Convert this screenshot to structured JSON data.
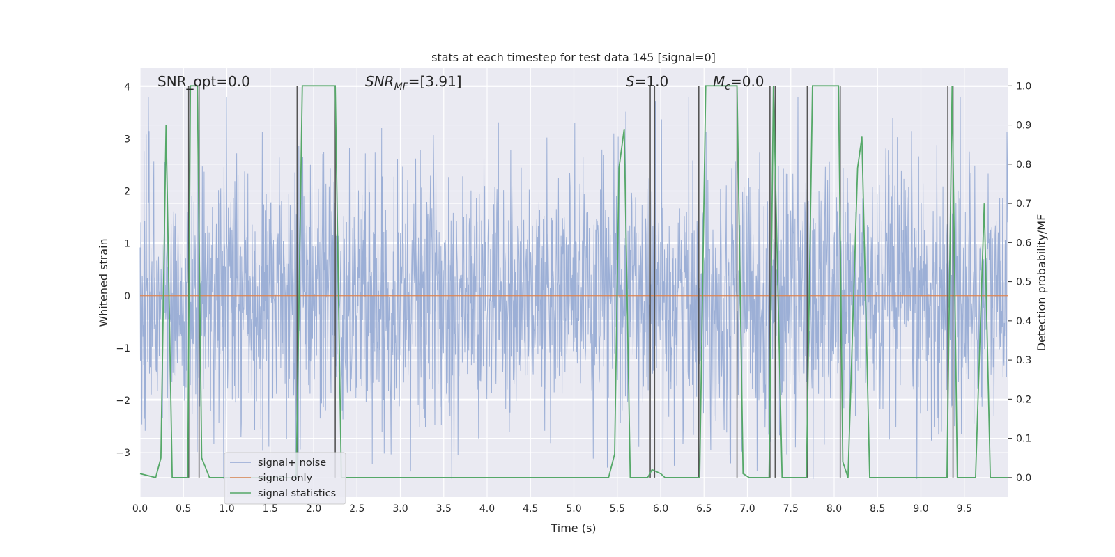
{
  "chart_data": {
    "type": "line",
    "title": "stats at each timestep for test data 145 [signal=0]",
    "xlabel": "Time (s)",
    "ylabel_left": "Whitened strain",
    "ylabel_right": "Detection probability/MF",
    "xlim": [
      0,
      10
    ],
    "ylim_left": [
      -3.85,
      4.35
    ],
    "ylim_right": [
      -0.05,
      1.045
    ],
    "x_ticks": [
      "0.0",
      "0.5",
      "1.0",
      "1.5",
      "2.0",
      "2.5",
      "3.0",
      "3.5",
      "4.0",
      "4.5",
      "5.0",
      "5.5",
      "6.0",
      "6.5",
      "7.0",
      "7.5",
      "8.0",
      "8.5",
      "9.0",
      "9.5"
    ],
    "y_ticks_left": [
      "4",
      "3",
      "2",
      "1",
      "0",
      "−1",
      "−2",
      "−3"
    ],
    "y_ticks_right": [
      "1.0",
      "0.9",
      "0.8",
      "0.7",
      "0.6",
      "0.5",
      "0.4",
      "0.3",
      "0.2",
      "0.1",
      "0.0"
    ],
    "grid": true,
    "legend_position": "lower-left",
    "annotations": {
      "snr_opt": "SNR_opt=0.0",
      "snr_mf_prefix": "SNR",
      "snr_mf_sub": "MF",
      "snr_mf_value": "=[3.91]",
      "s_label": "S",
      "s_value": "=1.0",
      "mc_label": "M",
      "mc_sub": "c",
      "mc_value": "=0.0"
    },
    "series": [
      {
        "name": "signal+ noise",
        "axis": "left",
        "color": "#93a8d3",
        "description_of_values": "white noise between about -3.5 and 3.8",
        "envelope": {
          "typical_min": -2.0,
          "typical_max": 2.0,
          "peak_max": 3.8,
          "peak_min": -3.5
        }
      },
      {
        "name": "signal only",
        "axis": "left",
        "color": "#dd8452",
        "x": [
          0,
          10
        ],
        "y": [
          0,
          0
        ]
      },
      {
        "name": "signal statistics",
        "axis": "right",
        "color": "#55a868",
        "x": [
          0,
          0.18,
          0.24,
          0.3,
          0.37,
          0.55,
          0.58,
          0.66,
          0.71,
          0.8,
          1.8,
          1.87,
          2.25,
          2.32,
          5.4,
          5.47,
          5.52,
          5.58,
          5.65,
          5.75,
          5.85,
          5.9,
          6.0,
          6.05,
          6.45,
          6.52,
          6.88,
          6.95,
          7.02,
          7.25,
          7.3,
          7.4,
          7.68,
          7.75,
          8.05,
          8.1,
          8.16,
          8.27,
          8.32,
          8.41,
          8.45,
          9.3,
          9.36,
          9.42,
          9.55,
          9.63,
          9.73,
          9.8,
          10
        ],
        "y": [
          0.01,
          0.0,
          0.05,
          0.9,
          0.0,
          0.0,
          1.0,
          1.0,
          0.05,
          0.0,
          0.0,
          1.0,
          1.0,
          0.0,
          0.0,
          0.06,
          0.79,
          0.89,
          0.0,
          0.0,
          0.0,
          0.02,
          0.01,
          0.0,
          0.0,
          1.0,
          1.0,
          0.01,
          0.0,
          0.0,
          1.0,
          0.0,
          0.0,
          1.0,
          1.0,
          0.04,
          0.0,
          0.79,
          0.87,
          0.0,
          0.0,
          0.0,
          1.0,
          0.0,
          0.0,
          0.0,
          0.7,
          0.0,
          0.0
        ]
      }
    ],
    "vertical_markers_x": [
      0.56,
      0.68,
      1.81,
      2.25,
      5.88,
      5.93,
      6.44,
      6.88,
      7.26,
      7.32,
      7.69,
      8.07,
      9.31,
      9.37
    ],
    "marker_color": "#555555"
  }
}
